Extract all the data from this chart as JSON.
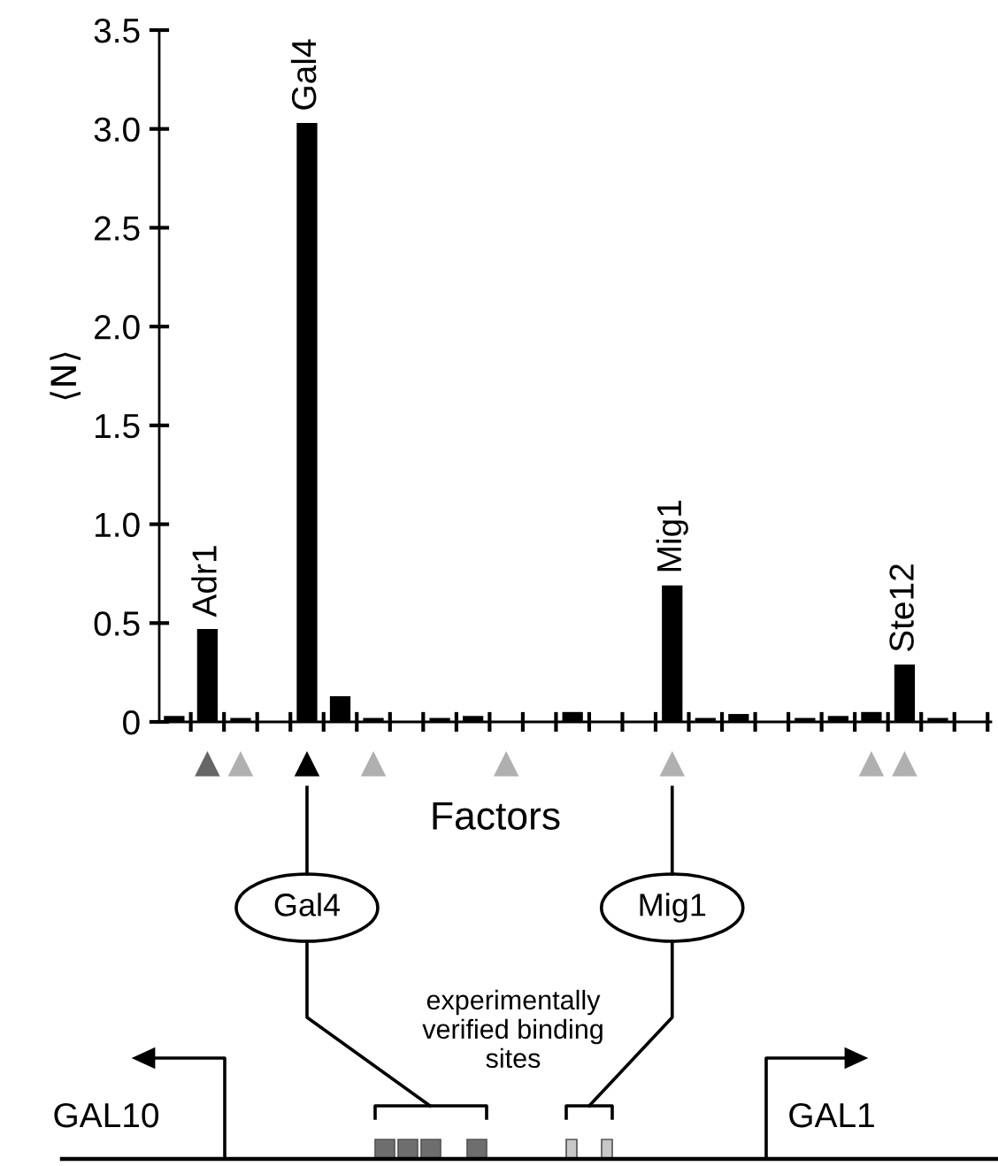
{
  "chart_data": {
    "type": "bar",
    "ylabel": "⟨N⟩",
    "xlabel": "Factors",
    "categories": [
      null,
      "Adr1",
      null,
      null,
      "Gal4",
      null,
      null,
      null,
      null,
      null,
      null,
      null,
      null,
      null,
      null,
      "Mig1",
      null,
      null,
      null,
      null,
      null,
      null,
      "Ste12",
      null,
      null
    ],
    "values": [
      0.03,
      0.47,
      0.02,
      0,
      3.03,
      0.13,
      0.02,
      0,
      0.02,
      0.03,
      0,
      0,
      0.05,
      0,
      0,
      0.69,
      0.02,
      0.04,
      0,
      0.02,
      0.03,
      0.05,
      0.29,
      0.02,
      0
    ],
    "color": "#000000",
    "ylim": [
      0,
      3.5
    ],
    "yticks": [
      0,
      0.5,
      {
        "value": 1,
        "label": "1.0"
      },
      1.5,
      {
        "value": 2,
        "label": "2.0"
      },
      2.5,
      {
        "value": 3,
        "label": "3.0"
      },
      3.5
    ],
    "grid": false,
    "annotations": [
      "Gal4",
      "Mig1",
      "experimentally\nverified binding\nsites",
      "GAL10",
      "GAL1"
    ]
  }
}
